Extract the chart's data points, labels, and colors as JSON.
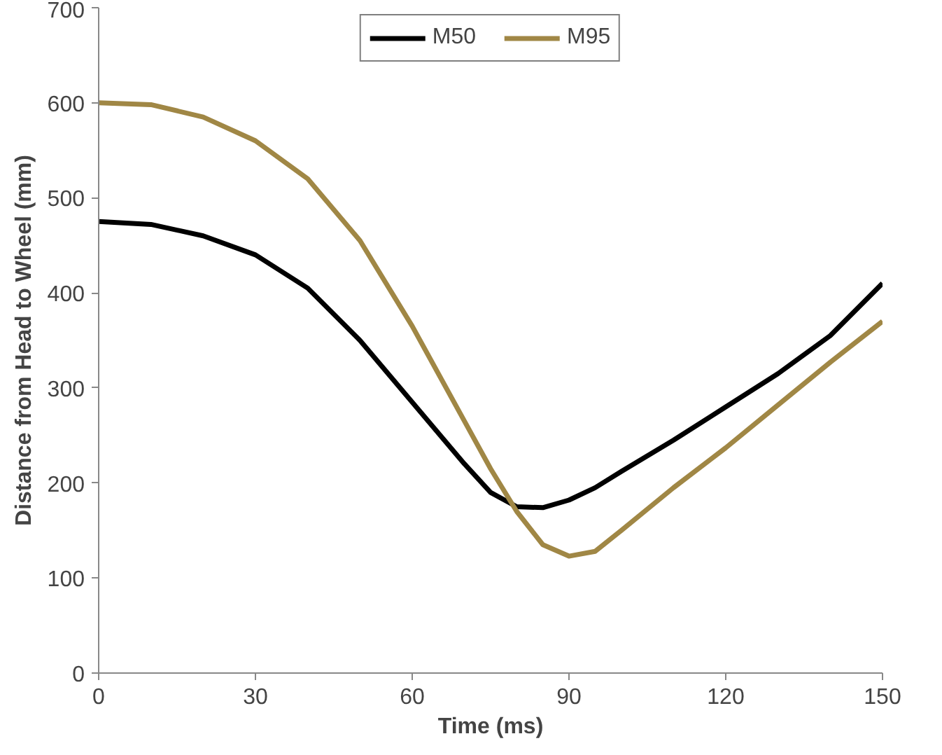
{
  "chart_data": {
    "type": "line",
    "xlabel": "Time (ms)",
    "ylabel": "Distance from Head to Wheel (mm)",
    "x": [
      0,
      10,
      20,
      30,
      40,
      50,
      60,
      70,
      75,
      80,
      85,
      90,
      95,
      100,
      110,
      120,
      130,
      140,
      150
    ],
    "series": [
      {
        "name": "M50",
        "color": "#000000",
        "values": [
          475,
          472,
          460,
          440,
          405,
          350,
          285,
          220,
          190,
          175,
          174,
          182,
          195,
          212,
          245,
          280,
          315,
          355,
          410
        ]
      },
      {
        "name": "M95",
        "color": "#a08745",
        "values": [
          600,
          598,
          585,
          560,
          520,
          455,
          365,
          265,
          215,
          170,
          135,
          123,
          128,
          150,
          195,
          237,
          282,
          327,
          370
        ]
      }
    ],
    "xlim": [
      0,
      150
    ],
    "xticks": [
      0,
      30,
      60,
      90,
      120,
      150
    ],
    "ylim": [
      0,
      700
    ],
    "yticks": [
      0,
      100,
      200,
      300,
      400,
      500,
      600,
      700
    ],
    "grid": false,
    "legend": "top",
    "marker": "none",
    "line_style": "solid"
  }
}
